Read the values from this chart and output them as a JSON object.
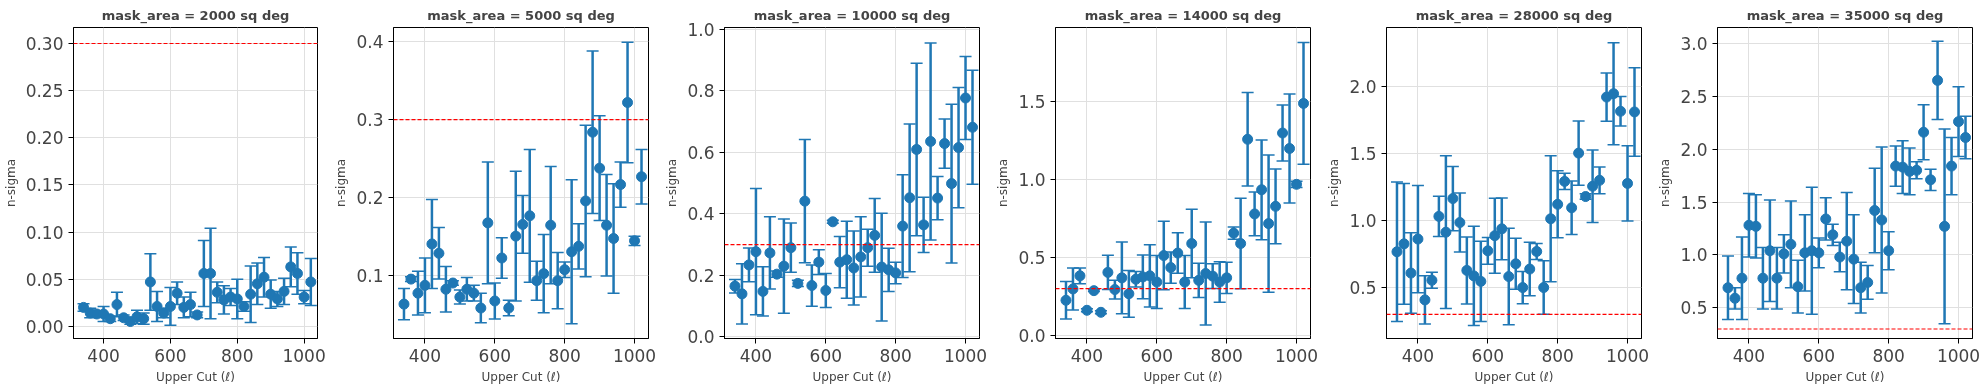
{
  "chart_data": [
    {
      "type": "scatter",
      "title": "mask_area = 2000 sq deg",
      "xlabel": "Upper Cut (ℓ)",
      "ylabel": "n-sigma",
      "x": [
        340,
        360,
        380,
        400,
        420,
        440,
        460,
        480,
        500,
        520,
        540,
        560,
        580,
        600,
        620,
        640,
        660,
        680,
        700,
        720,
        740,
        760,
        780,
        800,
        820,
        840,
        860,
        880,
        900,
        920,
        940,
        960,
        980,
        1000,
        1020
      ],
      "xlim": [
        310,
        1040
      ],
      "xticks": [
        400,
        600,
        800,
        1000
      ],
      "ylim": [
        -0.013,
        0.317
      ],
      "yticks": [
        {
          "value": 0,
          "label": "0.00"
        },
        {
          "value": 0.05,
          "label": "0.05"
        },
        {
          "value": 0.1,
          "label": "0.10"
        },
        {
          "value": 0.15,
          "label": "0.15"
        },
        {
          "value": 0.2,
          "label": "0.20"
        },
        {
          "value": 0.25,
          "label": "0.25"
        },
        {
          "value": 0.3,
          "label": "0.30"
        }
      ],
      "grid": true,
      "marker": "circle",
      "ref_lines": [
        {
          "axis": "y",
          "value": 0.3,
          "color": "#ff0000",
          "line_style": "dashed"
        }
      ],
      "series": [
        {
          "color": "#1f77b4",
          "values": [
            0.02,
            0.014,
            0.013,
            0.013,
            0.008,
            0.023,
            0.009,
            0.005,
            0.01,
            0.008,
            0.047,
            0.021,
            0.014,
            0.021,
            0.035,
            0.02,
            0.023,
            0.012,
            0.056,
            0.056,
            0.036,
            0.028,
            0.031,
            0.029,
            0.021,
            0.034,
            0.045,
            0.052,
            0.034,
            0.029,
            0.037,
            0.063,
            0.056,
            0.031,
            0.047
          ],
          "errors": [
            0.004,
            0.005,
            0.003,
            0.008,
            0.003,
            0.013,
            0.003,
            0.003,
            0.007,
            0.006,
            0.03,
            0.016,
            0.005,
            0.02,
            0.012,
            0.011,
            0.013,
            0.003,
            0.035,
            0.048,
            0.011,
            0.015,
            0.009,
            0.021,
            0.005,
            0.03,
            0.022,
            0.021,
            0.015,
            0.008,
            0.014,
            0.021,
            0.022,
            0.007,
            0.025
          ]
        }
      ]
    },
    {
      "type": "scatter",
      "title": "mask_area = 5000 sq deg",
      "xlabel": "Upper Cut (ℓ)",
      "ylabel": "n-sigma",
      "x": [
        340,
        360,
        380,
        400,
        420,
        440,
        460,
        480,
        500,
        520,
        540,
        560,
        580,
        600,
        620,
        640,
        660,
        680,
        700,
        720,
        740,
        760,
        780,
        800,
        820,
        840,
        860,
        880,
        900,
        920,
        940,
        960,
        980,
        1000,
        1020
      ],
      "xlim": [
        310,
        1040
      ],
      "xticks": [
        400,
        600,
        800,
        1000
      ],
      "ylim": [
        0.02,
        0.418
      ],
      "yticks": [
        0.1,
        0.2,
        0.3,
        0.4
      ],
      "grid": true,
      "marker": "circle",
      "ref_lines": [
        {
          "axis": "y",
          "value": 0.3,
          "color": "#ff0000",
          "line_style": "dashed"
        }
      ],
      "series": [
        {
          "color": "#1f77b4",
          "values": [
            0.064,
            0.096,
            0.078,
            0.088,
            0.141,
            0.129,
            0.083,
            0.091,
            0.073,
            0.083,
            0.078,
            0.059,
            0.168,
            0.068,
            0.123,
            0.059,
            0.151,
            0.166,
            0.177,
            0.094,
            0.103,
            0.165,
            0.094,
            0.108,
            0.131,
            0.138,
            0.196,
            0.284,
            0.238,
            0.165,
            0.148,
            0.217,
            0.322,
            0.145,
            0.227
          ],
          "errors": [
            0.02,
            0.003,
            0.028,
            0.035,
            0.057,
            0.033,
            0.029,
            0.003,
            0.009,
            0.015,
            0.01,
            0.019,
            0.078,
            0.023,
            0.026,
            0.01,
            0.083,
            0.037,
            0.085,
            0.025,
            0.05,
            0.075,
            0.036,
            0.01,
            0.092,
            0.029,
            0.097,
            0.104,
            0.067,
            0.065,
            0.07,
            0.029,
            0.077,
            0.006,
            0.035
          ]
        }
      ]
    },
    {
      "type": "scatter",
      "title": "mask_area = 10000 sq deg",
      "xlabel": "Upper Cut (ℓ)",
      "ylabel": "n-sigma",
      "x": [
        340,
        360,
        380,
        400,
        420,
        440,
        460,
        480,
        500,
        520,
        540,
        560,
        580,
        600,
        620,
        640,
        660,
        680,
        700,
        720,
        740,
        760,
        780,
        800,
        820,
        840,
        860,
        880,
        900,
        920,
        940,
        960,
        980,
        1000,
        1020
      ],
      "xlim": [
        310,
        1040
      ],
      "xticks": [
        400,
        600,
        800,
        1000
      ],
      "ylim": [
        -0.005,
        1.005
      ],
      "yticks": [
        {
          "value": 0,
          "label": "0.0"
        },
        0.2,
        0.4,
        0.6,
        0.8,
        {
          "value": 1,
          "label": "1.0"
        }
      ],
      "grid": true,
      "marker": "circle",
      "ref_lines": [
        {
          "axis": "y",
          "value": 0.3,
          "color": "#ff0000",
          "line_style": "dashed"
        }
      ],
      "series": [
        {
          "color": "#1f77b4",
          "values": [
            0.165,
            0.14,
            0.234,
            0.277,
            0.148,
            0.273,
            0.204,
            0.23,
            0.29,
            0.174,
            0.441,
            0.167,
            0.243,
            0.151,
            0.374,
            0.243,
            0.251,
            0.224,
            0.26,
            0.29,
            0.33,
            0.227,
            0.218,
            0.208,
            0.36,
            0.452,
            0.609,
            0.364,
            0.635,
            0.451,
            0.628,
            0.498,
            0.615,
            0.776,
            0.681
          ],
          "errors": [
            0.022,
            0.098,
            0.055,
            0.205,
            0.08,
            0.117,
            0.01,
            0.153,
            0.08,
            0.01,
            0.2,
            0.067,
            0.04,
            0.055,
            0.005,
            0.083,
            0.125,
            0.12,
            0.13,
            0.06,
            0.12,
            0.175,
            0.07,
            0.035,
            0.167,
            0.24,
            0.28,
            0.09,
            0.32,
            0.07,
            0.08,
            0.258,
            0.195,
            0.135,
            0.185
          ]
        }
      ]
    },
    {
      "type": "scatter",
      "title": "mask_area = 14000 sq deg",
      "xlabel": "Upper Cut (ℓ)",
      "ylabel": "n-sigma",
      "x": [
        340,
        360,
        380,
        400,
        420,
        440,
        460,
        480,
        500,
        520,
        540,
        560,
        580,
        600,
        620,
        640,
        660,
        680,
        700,
        720,
        740,
        760,
        780,
        800,
        820,
        840,
        860,
        880,
        900,
        920,
        940,
        960,
        980,
        1000,
        1020
      ],
      "xlim": [
        310,
        1040
      ],
      "xticks": [
        400,
        600,
        800,
        1000
      ],
      "ylim": [
        -0.02,
        1.975
      ],
      "yticks": [
        {
          "value": 0,
          "label": "0.0"
        },
        0.5,
        {
          "value": 1,
          "label": "1.0"
        },
        1.5
      ],
      "grid": true,
      "marker": "circle",
      "ref_lines": [
        {
          "axis": "y",
          "value": 0.3,
          "color": "#ff0000",
          "line_style": "dashed"
        }
      ],
      "series": [
        {
          "color": "#1f77b4",
          "values": [
            0.225,
            0.298,
            0.382,
            0.161,
            0.287,
            0.148,
            0.404,
            0.294,
            0.369,
            0.267,
            0.36,
            0.375,
            0.382,
            0.342,
            0.512,
            0.435,
            0.528,
            0.342,
            0.589,
            0.353,
            0.397,
            0.38,
            0.342,
            0.369,
            0.656,
            0.589,
            1.258,
            0.779,
            0.934,
            0.717,
            0.828,
            1.298,
            1.199,
            0.969,
            1.488
          ],
          "errors": [
            0.12,
            0.135,
            0.05,
            0.01,
            0.005,
            0.01,
            0.11,
            0.06,
            0.23,
            0.15,
            0.05,
            0.14,
            0.2,
            0.17,
            0.22,
            0.1,
            0.13,
            0.17,
            0.22,
            0.11,
            0.33,
            0.08,
            0.13,
            0.1,
            0.04,
            0.29,
            0.3,
            0.14,
            0.32,
            0.44,
            0.24,
            0.18,
            0.35,
            0.02,
            0.39
          ]
        }
      ]
    },
    {
      "type": "scatter",
      "title": "mask_area = 28000 sq deg",
      "xlabel": "Upper Cut (ℓ)",
      "ylabel": "n-sigma",
      "x": [
        340,
        360,
        380,
        400,
        420,
        440,
        460,
        480,
        500,
        520,
        540,
        560,
        580,
        600,
        620,
        640,
        660,
        680,
        700,
        720,
        740,
        760,
        780,
        800,
        820,
        840,
        860,
        880,
        900,
        920,
        940,
        960,
        980,
        1000,
        1020
      ],
      "xlim": [
        310,
        1040
      ],
      "xticks": [
        400,
        600,
        800,
        1000
      ],
      "ylim": [
        0.12,
        2.44
      ],
      "yticks": [
        0.5,
        {
          "value": 1,
          "label": "1.0"
        },
        1.5,
        {
          "value": 2,
          "label": "2.0"
        }
      ],
      "grid": true,
      "marker": "circle",
      "ref_lines": [
        {
          "axis": "y",
          "value": 0.3,
          "color": "#ff0000",
          "line_style": "dashed"
        }
      ],
      "series": [
        {
          "color": "#1f77b4",
          "values": [
            0.767,
            0.826,
            0.608,
            0.862,
            0.408,
            0.554,
            1.031,
            0.913,
            1.164,
            0.985,
            0.628,
            0.587,
            0.546,
            0.774,
            0.887,
            0.938,
            0.582,
            0.677,
            0.5,
            0.638,
            0.769,
            0.5,
            1.013,
            1.121,
            1.292,
            1.095,
            1.503,
            1.179,
            1.256,
            1.3,
            1.921,
            1.946,
            1.815,
            1.277,
            1.81
          ],
          "errors": [
            0.52,
            0.45,
            0.3,
            0.4,
            0.18,
            0.06,
            0.15,
            0.57,
            0.24,
            0.22,
            0.25,
            0.37,
            0.3,
            0.1,
            0.28,
            0.23,
            0.36,
            0.19,
            0.12,
            0.2,
            0.06,
            0.2,
            0.47,
            0.25,
            0.06,
            0.2,
            0.24,
            0.02,
            0.27,
            0.1,
            0.18,
            0.38,
            0.11,
            0.28,
            0.33
          ]
        }
      ]
    },
    {
      "type": "scatter",
      "title": "mask_area = 35000 sq deg",
      "xlabel": "Upper Cut (ℓ)",
      "ylabel": "n-sigma",
      "x": [
        340,
        360,
        380,
        400,
        420,
        440,
        460,
        480,
        500,
        520,
        540,
        560,
        580,
        600,
        620,
        640,
        660,
        680,
        700,
        720,
        740,
        760,
        780,
        800,
        820,
        840,
        860,
        880,
        900,
        920,
        940,
        960,
        980,
        1000,
        1020
      ],
      "xlim": [
        310,
        1040
      ],
      "xticks": [
        400,
        600,
        800,
        1000
      ],
      "ylim": [
        0.21,
        3.15
      ],
      "yticks": [
        0.5,
        {
          "value": 1,
          "label": "1.0"
        },
        1.5,
        {
          "value": 2,
          "label": "2.0"
        },
        2.5,
        {
          "value": 3,
          "label": "3.0"
        }
      ],
      "grid": true,
      "marker": "circle",
      "ref_lines": [
        {
          "axis": "y",
          "value": 0.3,
          "color": "#ff0000",
          "line_style": "dashed"
        }
      ],
      "series": [
        {
          "color": "#1f77b4",
          "values": [
            0.69,
            0.59,
            0.78,
            1.28,
            1.27,
            0.78,
            1.04,
            0.78,
            1.01,
            1.1,
            0.7,
            1.02,
            1.04,
            1.02,
            1.34,
            1.19,
            0.98,
            1.13,
            0.96,
            0.69,
            0.74,
            1.42,
            1.33,
            1.04,
            1.84,
            1.83,
            1.79,
            1.8,
            2.16,
            1.71,
            2.65,
            1.27,
            1.84,
            2.26,
            2.11
          ],
          "errors": [
            0.3,
            0.1,
            0.39,
            0.3,
            0.3,
            0.29,
            0.48,
            0.29,
            0.18,
            0.41,
            0.25,
            0.36,
            0.6,
            0.14,
            0.2,
            0.1,
            0.14,
            0.46,
            0.42,
            0.24,
            0.16,
            0.4,
            0.69,
            0.18,
            0.19,
            0.25,
            0.22,
            0.08,
            0.26,
            0.1,
            0.37,
            0.92,
            0.27,
            0.33,
            0.2
          ]
        }
      ]
    }
  ]
}
